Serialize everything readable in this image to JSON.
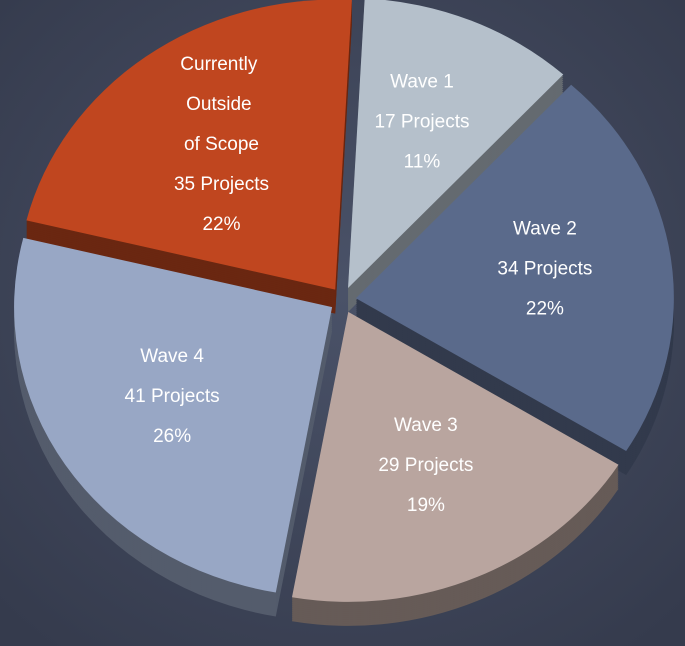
{
  "chart_data": {
    "type": "pie",
    "categories": [
      "Wave 1",
      "Wave 2",
      "Wave 3",
      "Wave 4",
      "Currently Outside of Scope"
    ],
    "values": [
      11,
      22,
      19,
      26,
      22
    ],
    "value_labels": [
      "11%",
      "22%",
      "19%",
      "26%",
      "22%"
    ],
    "projects": [
      17,
      34,
      29,
      41,
      35
    ],
    "project_labels": [
      "17 Projects",
      "34 Projects",
      "29 Projects",
      "41 Projects",
      "35 Projects"
    ],
    "colors": [
      "#b5c0cb",
      "#5a6a8b",
      "#b9a59f",
      "#98a7c5",
      "#c0461f"
    ]
  }
}
